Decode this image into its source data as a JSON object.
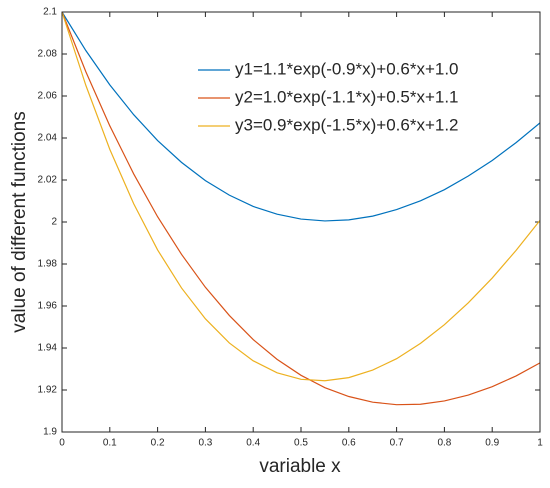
{
  "chart_data": {
    "type": "line",
    "xlabel": "variable x",
    "ylabel": "value of different functions",
    "x": [
      0,
      0.05,
      0.1,
      0.15,
      0.2,
      0.25,
      0.3,
      0.35,
      0.4,
      0.45,
      0.5,
      0.55,
      0.6,
      0.65,
      0.7,
      0.75,
      0.8,
      0.85,
      0.9,
      0.95,
      1
    ],
    "series": [
      {
        "name": "y1=1.1*exp(-0.9*x)+0.6*x+1.0",
        "color": "#0072BD",
        "values": [
          2.1,
          2.0816,
          2.0653,
          2.0511,
          2.0388,
          2.0284,
          2.0197,
          2.0128,
          2.0074,
          2.0037,
          2.0014,
          2.0005,
          2.001,
          2.0028,
          2.0059,
          2.0101,
          2.0154,
          2.0219,
          2.0293,
          2.0378,
          2.0472
        ]
      },
      {
        "name": "y2=1.0*exp(-1.1*x)+0.5*x+1.1",
        "color": "#D95319",
        "values": [
          2.1,
          2.0715,
          2.0458,
          2.0229,
          2.0025,
          1.9846,
          1.9689,
          1.9555,
          1.944,
          1.9346,
          1.927,
          1.9211,
          1.9169,
          1.9142,
          1.913,
          1.9132,
          1.9148,
          1.9176,
          1.9216,
          1.9267,
          1.9329
        ]
      },
      {
        "name": "y3=0.9*exp(-1.5*x)+0.6*x+1.2",
        "color": "#EDB120",
        "values": [
          2.1,
          2.065,
          2.0346,
          2.0087,
          1.9867,
          1.9686,
          1.9539,
          1.9424,
          1.9339,
          1.9282,
          1.9251,
          1.9244,
          1.9259,
          1.9295,
          1.9349,
          1.9422,
          1.9511,
          1.9615,
          1.9733,
          1.9865,
          2.0008
        ]
      }
    ],
    "xlim": [
      0,
      1
    ],
    "xticks": [
      0,
      0.1,
      0.2,
      0.3,
      0.4,
      0.5,
      0.6,
      0.7,
      0.8,
      0.9,
      1
    ],
    "ylim": [
      1.9,
      2.1
    ],
    "yticks": [
      1.9,
      1.92,
      1.94,
      1.96,
      1.98,
      2,
      2.02,
      2.04,
      2.06,
      2.08,
      2.1
    ],
    "grid": false,
    "legend": "northeast"
  }
}
